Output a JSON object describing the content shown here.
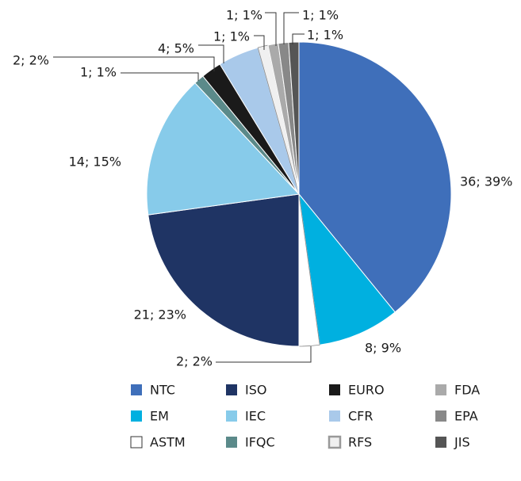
{
  "chart_data": {
    "type": "pie",
    "categories": [
      "NTC",
      "EM",
      "ASTM",
      "ISO",
      "IEC",
      "IFQC",
      "EURO",
      "CFR",
      "RFS",
      "FDA",
      "EPA",
      "JIS"
    ],
    "values": [
      36,
      8,
      2,
      21,
      14,
      1,
      2,
      4,
      1,
      1,
      1,
      1
    ],
    "value_labels": [
      "36; 39%",
      "8; 9%",
      "2; 2%",
      "21; 23%",
      "14; 15%",
      "1; 1%",
      "2; 2%",
      "4; 5%",
      "1; 1%",
      "1; 1%",
      "1; 1%",
      "1; 1%"
    ],
    "colors": [
      "#3f6fba",
      "#00b0e0",
      "#ffffff",
      "#1f3464",
      "#87cbea",
      "#5b8a8a",
      "#1a1a1a",
      "#a9c9ea",
      "#f0f0f0",
      "#aaaaaa",
      "#888888",
      "#555555"
    ],
    "legend": true
  }
}
